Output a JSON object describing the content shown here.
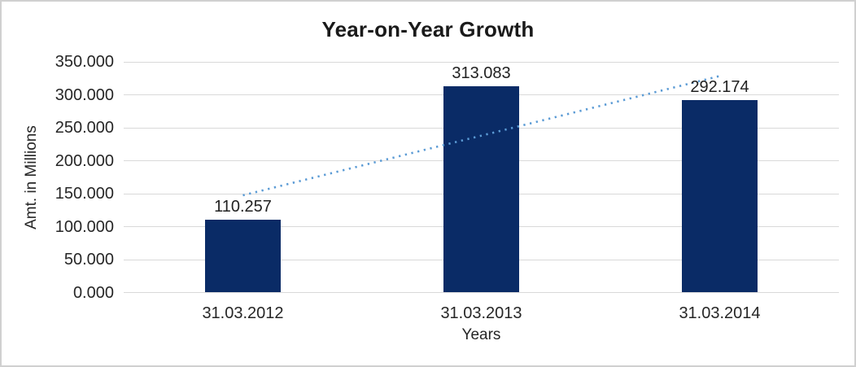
{
  "frame": {
    "background": "#ffffff",
    "border_color": "#d0d0d0"
  },
  "chart_data": {
    "type": "bar",
    "title": "Year-on-Year Growth",
    "xlabel": "Years",
    "ylabel": "Amt. in Millions",
    "categories": [
      "31.03.2012",
      "31.03.2013",
      "31.03.2014"
    ],
    "values": [
      110.257,
      313.083,
      292.174
    ],
    "data_labels": [
      "110.257",
      "313.083",
      "292.174"
    ],
    "ylim": [
      0,
      350
    ],
    "ytick_step": 50,
    "ytick_labels": [
      "0.000",
      "50.000",
      "100.000",
      "150.000",
      "200.000",
      "250.000",
      "300.000",
      "350.000"
    ],
    "grid": true,
    "legend": "none",
    "bar_color": "#0a2b66",
    "gridline_color": "#d9d9d9",
    "text_color": "#262626",
    "trendline": {
      "style": "dotted",
      "color": "#5b9bd5",
      "start_value": 147.5,
      "end_value": 328.5
    }
  }
}
